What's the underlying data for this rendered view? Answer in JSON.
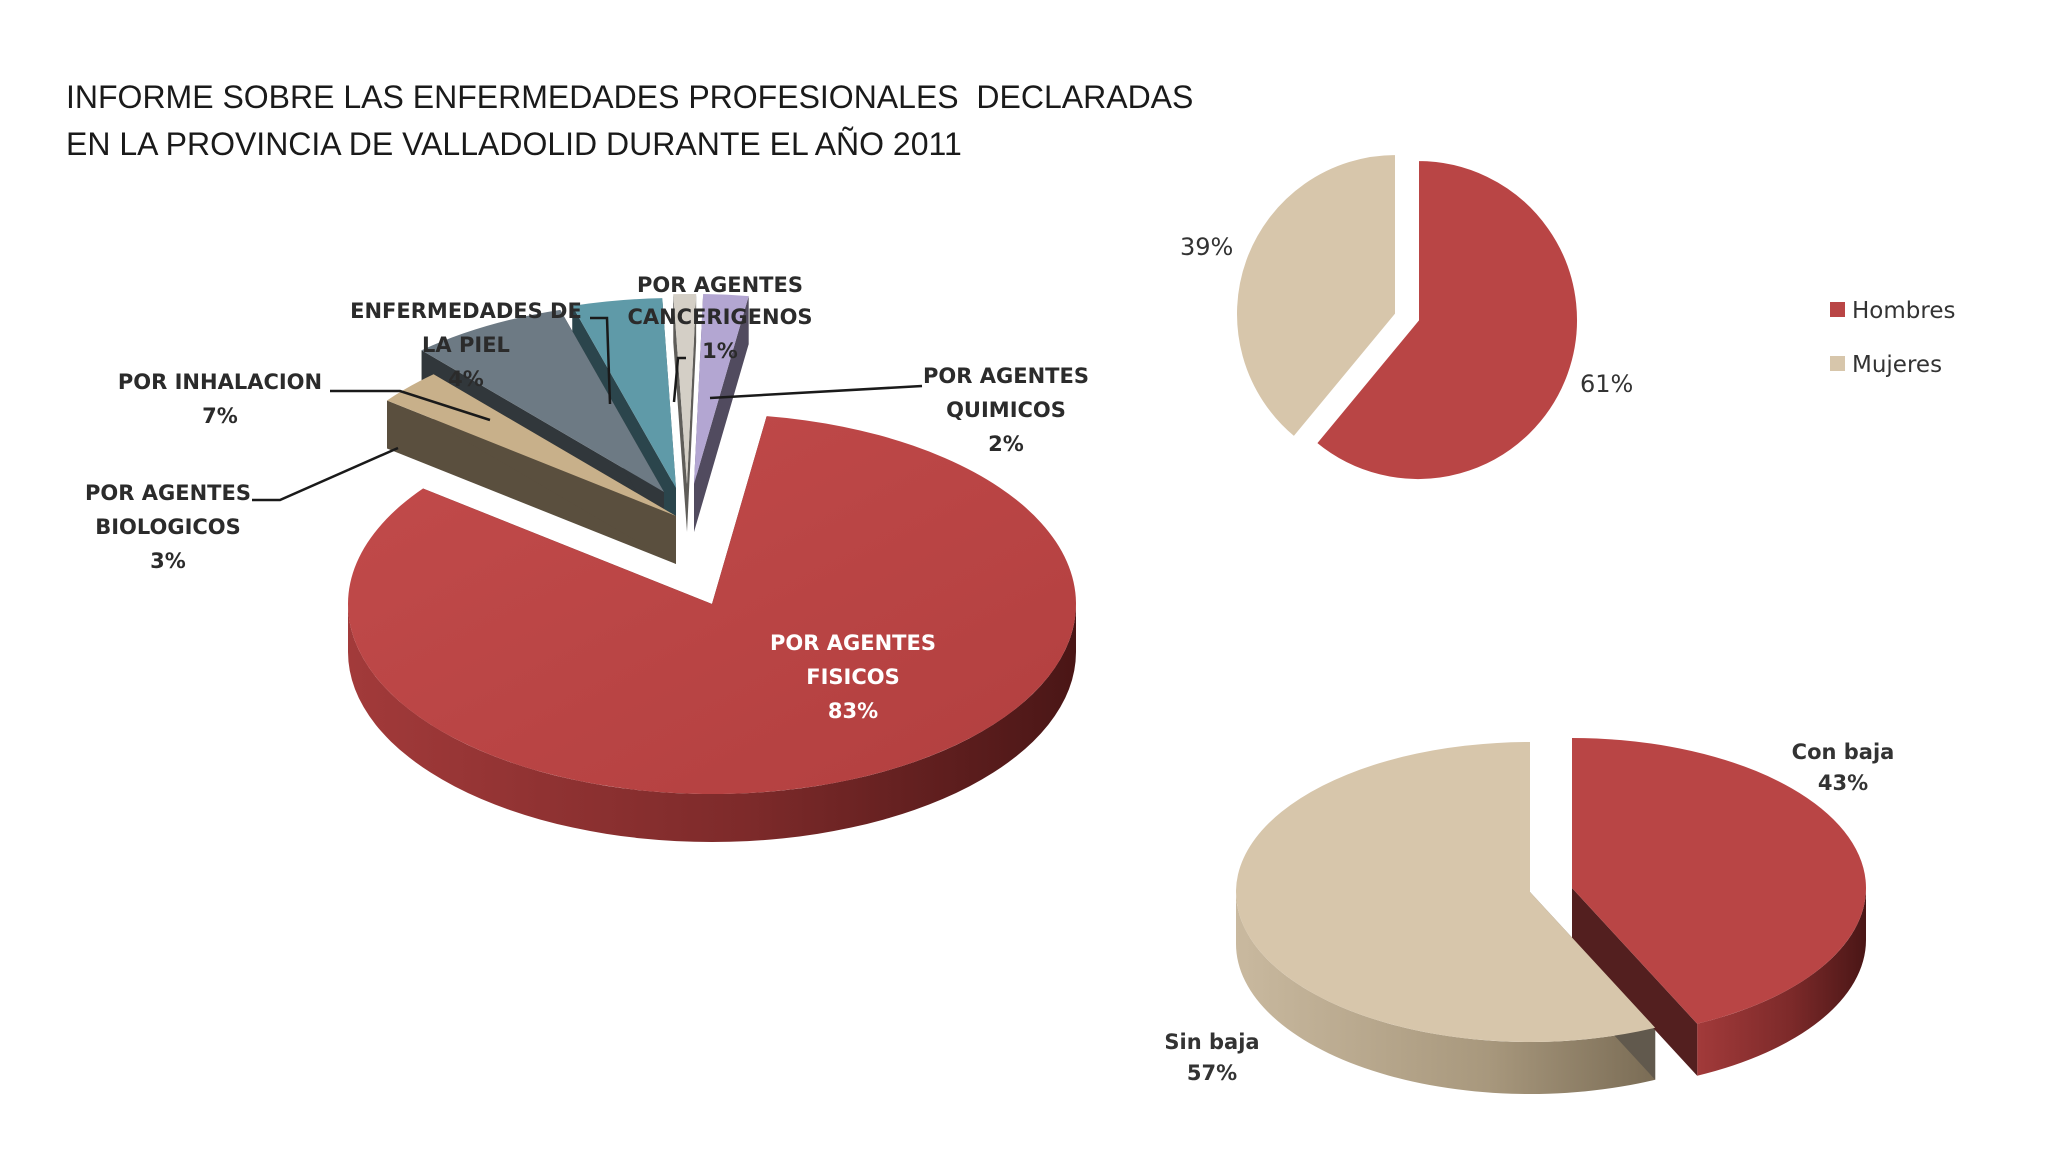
{
  "title": {
    "line1": "INFORME SOBRE LAS ENFERMEDADES PROFESIONALES  DECLARADAS",
    "line2": "EN LA PROVINCIA DE VALLADOLID DURANTE EL AÑO 2011"
  },
  "chart_data": [
    {
      "type": "pie",
      "style": "3d-exploded",
      "categories": [
        "POR AGENTES FISICOS",
        "POR AGENTES BIOLOGICOS",
        "POR INHALACION",
        "ENFERMEDADES DE LA PIEL",
        "POR AGENTES CANCERIGENOS",
        "POR AGENTES QUIMICOS"
      ],
      "values": [
        83,
        3,
        7,
        4,
        1,
        2
      ],
      "labels": [
        {
          "lines": [
            "POR AGENTES",
            "FISICOS"
          ],
          "pct": "83%"
        },
        {
          "lines": [
            "POR AGENTES",
            "BIOLOGICOS"
          ],
          "pct": "3%"
        },
        {
          "lines": [
            "POR INHALACION"
          ],
          "pct": "7%"
        },
        {
          "lines": [
            "ENFERMEDADES DE",
            "LA PIEL"
          ],
          "pct": "4%"
        },
        {
          "lines": [
            "POR AGENTES",
            "CANCERIGENOS"
          ],
          "pct": "1%"
        },
        {
          "lines": [
            "POR AGENTES",
            "QUIMICOS"
          ],
          "pct": "2%"
        }
      ],
      "colors": [
        "#b94545",
        "#c8b08a",
        "#6d7a84",
        "#5f9aa8",
        "#d4cfc6",
        "#b3a6d2"
      ]
    },
    {
      "type": "pie",
      "categories": [
        "Hombres",
        "Mujeres"
      ],
      "values": [
        61,
        39
      ],
      "labels": [
        "61%",
        "39%"
      ],
      "legend": [
        "Hombres",
        "Mujeres"
      ],
      "legend_position": "right",
      "colors": [
        "#b94545",
        "#d7c6ab"
      ]
    },
    {
      "type": "pie",
      "style": "3d-exploded",
      "categories": [
        "Con baja",
        "Sin baja"
      ],
      "values": [
        43,
        57
      ],
      "labels": [
        {
          "name": "Con baja",
          "pct": "43%"
        },
        {
          "name": "Sin baja",
          "pct": "57%"
        }
      ],
      "colors": [
        "#b94545",
        "#d7c6ab"
      ]
    }
  ]
}
